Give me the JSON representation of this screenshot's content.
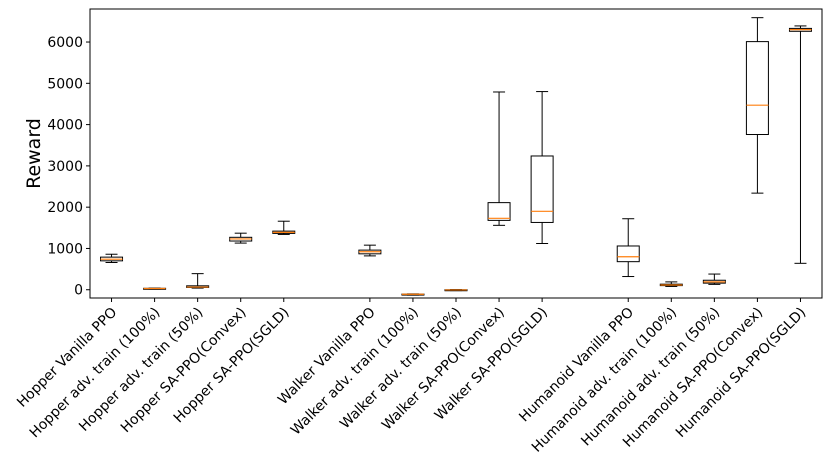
{
  "chart_data": {
    "type": "boxplot",
    "title": "",
    "xlabel": "",
    "ylabel": "Reward",
    "ylim": [
      -200,
      6800
    ],
    "yticks": [
      0,
      1000,
      2000,
      3000,
      4000,
      5000,
      6000
    ],
    "ytick_labels": [
      "0",
      "1000",
      "2000",
      "3000",
      "4000",
      "5000",
      "6000"
    ],
    "grid": false,
    "colors": {
      "box": "#000000",
      "median": "#ff7f0e",
      "background": "#ffffff"
    },
    "categories": [
      "Hopper Vanilla PPO",
      "Hopper adv. train (100%)",
      "Hopper adv. train (50%)",
      "Hopper SA-PPO(Convex)",
      "Hopper SA-PPO(SGLD)",
      "Walker Vanilla PPO",
      "Walker adv. train (100%)",
      "Walker adv. train (50%)",
      "Walker SA-PPO(Convex)",
      "Walker SA-PPO(SGLD)",
      "Humanoid Vanilla PPO",
      "Humanoid adv. train (100%)",
      "Humanoid adv. train (50%)",
      "Humanoid SA-PPO(Convex)",
      "Humanoid SA-PPO(SGLD)"
    ],
    "x_positions": [
      1,
      2,
      3,
      4,
      5,
      7,
      8,
      9,
      10,
      11,
      13,
      14,
      15,
      16,
      17
    ],
    "boxes": [
      {
        "whislo": 660,
        "q1": 700,
        "med": 740,
        "q3": 790,
        "whishi": 860
      },
      {
        "whislo": 15,
        "q1": 25,
        "med": 30,
        "q3": 35,
        "whishi": 40
      },
      {
        "whislo": 40,
        "q1": 55,
        "med": 65,
        "q3": 95,
        "whishi": 390
      },
      {
        "whislo": 1130,
        "q1": 1180,
        "med": 1230,
        "q3": 1270,
        "whishi": 1370
      },
      {
        "whislo": 1340,
        "q1": 1365,
        "med": 1390,
        "q3": 1420,
        "whishi": 1660
      },
      {
        "whislo": 820,
        "q1": 870,
        "med": 920,
        "q3": 960,
        "whishi": 1080
      },
      {
        "whislo": -130,
        "q1": -115,
        "med": -110,
        "q3": -105,
        "whishi": -100
      },
      {
        "whislo": -20,
        "q1": -10,
        "med": -5,
        "q3": 0,
        "whishi": 5
      },
      {
        "whislo": 1560,
        "q1": 1680,
        "med": 1730,
        "q3": 2110,
        "whishi": 4790
      },
      {
        "whislo": 1120,
        "q1": 1630,
        "med": 1900,
        "q3": 3240,
        "whishi": 4800
      },
      {
        "whislo": 320,
        "q1": 680,
        "med": 800,
        "q3": 1060,
        "whishi": 1720
      },
      {
        "whislo": 80,
        "q1": 100,
        "med": 115,
        "q3": 135,
        "whishi": 190
      },
      {
        "whislo": 130,
        "q1": 160,
        "med": 190,
        "q3": 230,
        "whishi": 380
      },
      {
        "whislo": 2340,
        "q1": 3760,
        "med": 4470,
        "q3": 6010,
        "whishi": 6590
      },
      {
        "whislo": 640,
        "q1": 6260,
        "med": 6300,
        "q3": 6330,
        "whishi": 6390
      }
    ]
  }
}
